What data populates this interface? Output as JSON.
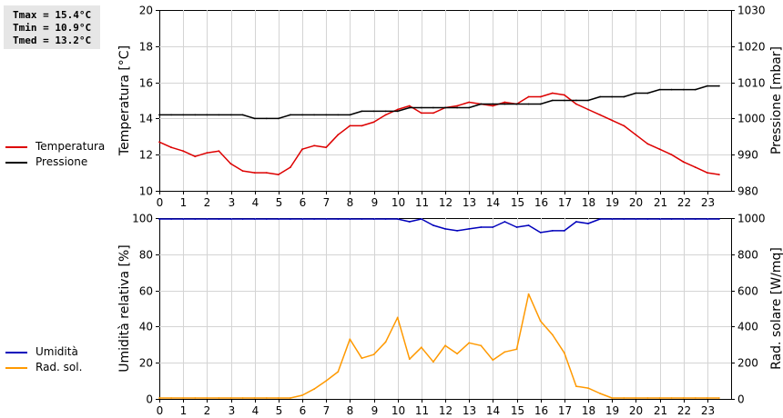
{
  "stats": {
    "tmax": "Tmax = 15.4°C",
    "tmin": "Tmin = 10.9°C",
    "tmed": "Tmed = 13.2°C"
  },
  "legend_top": [
    {
      "label": "Temperatura",
      "color": "#dd0000"
    },
    {
      "label": "Pressione",
      "color": "#000000"
    }
  ],
  "legend_bottom": [
    {
      "label": "Umidità",
      "color": "#0000bb"
    },
    {
      "label": "Rad. sol.",
      "color": "#ff9900"
    }
  ],
  "chart_data": [
    {
      "type": "line",
      "xlabel": "",
      "x_ticks": [
        "0",
        "1",
        "2",
        "3",
        "4",
        "5",
        "6",
        "7",
        "8",
        "9",
        "10",
        "11",
        "12",
        "13",
        "14",
        "15",
        "16",
        "17",
        "18",
        "19",
        "20",
        "21",
        "22",
        "23"
      ],
      "xlim": [
        0,
        24
      ],
      "left_axis": {
        "label": "Temperatura [°C]",
        "ylim": [
          10,
          20
        ],
        "ticks": [
          "10",
          "12",
          "14",
          "16",
          "18",
          "20"
        ]
      },
      "right_axis": {
        "label": "Pressione [mbar]",
        "ylim": [
          980,
          1030
        ],
        "ticks": [
          "980",
          "990",
          "1000",
          "1010",
          "1020",
          "1030"
        ]
      },
      "series": [
        {
          "name": "Temperatura",
          "axis": "left",
          "color": "#dd0000",
          "x": [
            0,
            0.5,
            1,
            1.5,
            2,
            2.5,
            3,
            3.5,
            4,
            4.5,
            5,
            5.5,
            6,
            6.5,
            7,
            7.5,
            8,
            8.5,
            9,
            9.5,
            10,
            10.5,
            11,
            11.5,
            12,
            12.5,
            13,
            13.5,
            14,
            14.5,
            15,
            15.5,
            16,
            16.5,
            17,
            17.5,
            18,
            18.5,
            19,
            19.5,
            20,
            20.5,
            21,
            21.5,
            22,
            22.5,
            23,
            23.5
          ],
          "values": [
            12.7,
            12.4,
            12.2,
            11.9,
            12.1,
            12.2,
            11.5,
            11.1,
            11.0,
            11.0,
            10.9,
            11.3,
            12.3,
            12.5,
            12.4,
            13.1,
            13.6,
            13.6,
            13.8,
            14.2,
            14.5,
            14.7,
            14.3,
            14.3,
            14.6,
            14.7,
            14.9,
            14.8,
            14.7,
            14.9,
            14.8,
            15.2,
            15.2,
            15.4,
            15.3,
            14.8,
            14.5,
            14.2,
            13.9,
            13.6,
            13.1,
            12.6,
            12.3,
            12.0,
            11.6,
            11.3,
            11.0,
            10.9
          ]
        },
        {
          "name": "Pressione",
          "axis": "right",
          "color": "#000000",
          "x": [
            0,
            0.5,
            1,
            1.5,
            2,
            2.5,
            3,
            3.5,
            4,
            4.5,
            5,
            5.5,
            6,
            6.5,
            7,
            7.5,
            8,
            8.5,
            9,
            9.5,
            10,
            10.5,
            11,
            11.5,
            12,
            12.5,
            13,
            13.5,
            14,
            14.5,
            15,
            15.5,
            16,
            16.5,
            17,
            17.5,
            18,
            18.5,
            19,
            19.5,
            20,
            20.5,
            21,
            21.5,
            22,
            22.5,
            23,
            23.5
          ],
          "values": [
            1001,
            1001,
            1001,
            1001,
            1001,
            1001,
            1001,
            1001,
            1000,
            1000,
            1000,
            1001,
            1001,
            1001,
            1001,
            1001,
            1001,
            1002,
            1002,
            1002,
            1002,
            1003,
            1003,
            1003,
            1003,
            1003,
            1003,
            1004,
            1004,
            1004,
            1004,
            1004,
            1004,
            1005,
            1005,
            1005,
            1005,
            1006,
            1006,
            1006,
            1007,
            1007,
            1008,
            1008,
            1008,
            1008,
            1009,
            1009
          ]
        }
      ]
    },
    {
      "type": "line",
      "xlabel": "",
      "x_ticks": [
        "0",
        "1",
        "2",
        "3",
        "4",
        "5",
        "6",
        "7",
        "8",
        "9",
        "10",
        "11",
        "12",
        "13",
        "14",
        "15",
        "16",
        "17",
        "18",
        "19",
        "20",
        "21",
        "22",
        "23"
      ],
      "xlim": [
        0,
        24
      ],
      "left_axis": {
        "label": "Umidità relativa [%]",
        "ylim": [
          0,
          100
        ],
        "ticks": [
          "0",
          "20",
          "40",
          "60",
          "80",
          "100"
        ]
      },
      "right_axis": {
        "label": "Rad. solare [W/mq]",
        "ylim": [
          0,
          1000
        ],
        "ticks": [
          "0",
          "200",
          "400",
          "600",
          "800",
          "1000"
        ]
      },
      "series": [
        {
          "name": "Umidità",
          "axis": "left",
          "color": "#0000bb",
          "x": [
            0,
            0.5,
            1,
            1.5,
            2,
            2.5,
            3,
            3.5,
            4,
            4.5,
            5,
            5.5,
            6,
            6.5,
            7,
            7.5,
            8,
            8.5,
            9,
            9.5,
            10,
            10.5,
            11,
            11.5,
            12,
            12.5,
            13,
            13.5,
            14,
            14.5,
            15,
            15.5,
            16,
            16.5,
            17,
            17.5,
            18,
            18.5,
            19,
            19.5,
            20,
            20.5,
            21,
            21.5,
            22,
            22.5,
            23,
            23.5
          ],
          "values": [
            100,
            100,
            100,
            100,
            100,
            100,
            100,
            100,
            100,
            100,
            100,
            100,
            100,
            100,
            100,
            100,
            100,
            100,
            100,
            100,
            100,
            98,
            100,
            96,
            94,
            93,
            94,
            95,
            95,
            98,
            95,
            96,
            92,
            93,
            93,
            98,
            97,
            100,
            100,
            100,
            100,
            100,
            100,
            100,
            100,
            100,
            100,
            100
          ]
        },
        {
          "name": "Rad. sol.",
          "axis": "right",
          "color": "#ff9900",
          "x": [
            0,
            0.5,
            1,
            1.5,
            2,
            2.5,
            3,
            3.5,
            4,
            4.5,
            5,
            5.5,
            6,
            6.5,
            7,
            7.5,
            8,
            8.5,
            9,
            9.5,
            10,
            10.5,
            11,
            11.5,
            12,
            12.5,
            13,
            13.5,
            14,
            14.5,
            15,
            15.5,
            16,
            16.5,
            17,
            17.5,
            18,
            18.5,
            19,
            19.5,
            20,
            20.5,
            21,
            21.5,
            22,
            22.5,
            23,
            23.5
          ],
          "values": [
            5,
            5,
            5,
            5,
            5,
            5,
            5,
            5,
            5,
            5,
            5,
            5,
            20,
            55,
            100,
            150,
            330,
            225,
            245,
            315,
            450,
            220,
            285,
            205,
            295,
            250,
            310,
            295,
            215,
            260,
            275,
            580,
            430,
            355,
            255,
            70,
            60,
            30,
            5,
            5,
            5,
            5,
            5,
            5,
            5,
            5,
            5,
            5
          ]
        }
      ]
    }
  ]
}
